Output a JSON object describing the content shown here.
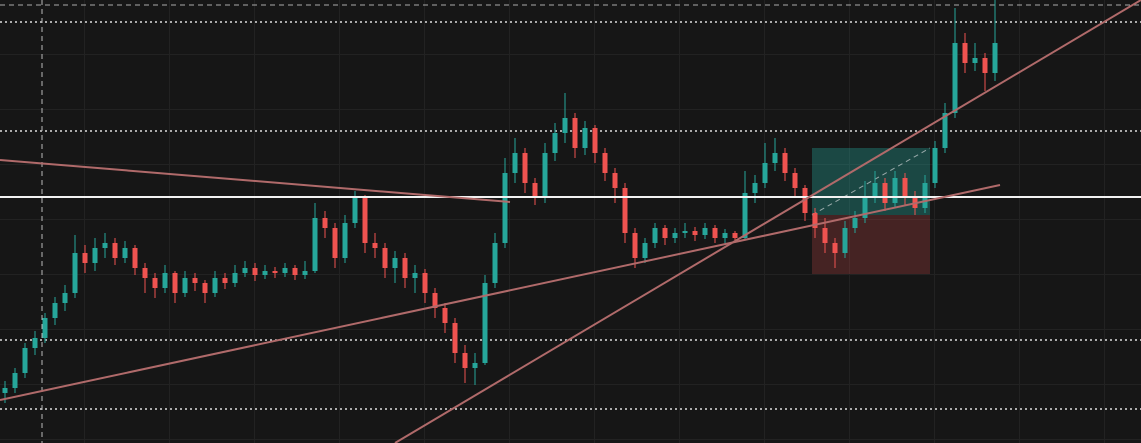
{
  "chart_data": {
    "type": "candlestick",
    "xlim": [
      -0.5,
      113.6
    ],
    "ylim": [
      0,
      443
    ],
    "up_color": "#26a69a",
    "down_color": "#ef5350",
    "ohlc": [
      [
        50,
        62,
        40,
        55
      ],
      [
        55,
        75,
        50,
        70
      ],
      [
        70,
        100,
        65,
        95
      ],
      [
        95,
        112,
        88,
        105
      ],
      [
        105,
        130,
        100,
        125
      ],
      [
        125,
        146,
        118,
        140
      ],
      [
        140,
        158,
        132,
        150
      ],
      [
        150,
        208,
        145,
        190
      ],
      [
        190,
        198,
        170,
        180
      ],
      [
        180,
        205,
        172,
        195
      ],
      [
        195,
        210,
        185,
        200
      ],
      [
        200,
        205,
        178,
        185
      ],
      [
        185,
        202,
        180,
        195
      ],
      [
        195,
        198,
        168,
        175
      ],
      [
        175,
        180,
        150,
        165
      ],
      [
        165,
        170,
        145,
        155
      ],
      [
        155,
        178,
        150,
        170
      ],
      [
        170,
        172,
        140,
        150
      ],
      [
        150,
        172,
        146,
        165
      ],
      [
        165,
        170,
        152,
        160
      ],
      [
        160,
        163,
        140,
        150
      ],
      [
        150,
        172,
        146,
        165
      ],
      [
        165,
        170,
        154,
        160
      ],
      [
        160,
        178,
        156,
        170
      ],
      [
        170,
        182,
        166,
        175
      ],
      [
        175,
        180,
        162,
        168
      ],
      [
        168,
        178,
        164,
        172
      ],
      [
        172,
        176,
        165,
        170
      ],
      [
        170,
        180,
        166,
        175
      ],
      [
        175,
        178,
        163,
        168
      ],
      [
        168,
        182,
        164,
        172
      ],
      [
        172,
        240,
        170,
        225
      ],
      [
        225,
        232,
        205,
        215
      ],
      [
        215,
        220,
        175,
        185
      ],
      [
        185,
        228,
        180,
        220
      ],
      [
        220,
        252,
        215,
        245
      ],
      [
        245,
        248,
        190,
        200
      ],
      [
        200,
        210,
        185,
        195
      ],
      [
        195,
        200,
        165,
        175
      ],
      [
        175,
        192,
        160,
        185
      ],
      [
        185,
        190,
        155,
        165
      ],
      [
        165,
        178,
        150,
        170
      ],
      [
        170,
        174,
        140,
        150
      ],
      [
        150,
        155,
        125,
        135
      ],
      [
        135,
        140,
        110,
        120
      ],
      [
        120,
        125,
        80,
        90
      ],
      [
        90,
        98,
        60,
        75
      ],
      [
        75,
        90,
        58,
        80
      ],
      [
        80,
        168,
        78,
        160
      ],
      [
        160,
        210,
        155,
        200
      ],
      [
        200,
        285,
        195,
        270
      ],
      [
        270,
        305,
        260,
        290
      ],
      [
        290,
        295,
        250,
        260
      ],
      [
        260,
        265,
        238,
        245
      ],
      [
        245,
        300,
        240,
        290
      ],
      [
        290,
        320,
        282,
        310
      ],
      [
        310,
        350,
        300,
        325
      ],
      [
        325,
        330,
        285,
        295
      ],
      [
        295,
        322,
        288,
        315
      ],
      [
        315,
        318,
        280,
        290
      ],
      [
        290,
        295,
        262,
        270
      ],
      [
        270,
        275,
        240,
        255
      ],
      [
        255,
        260,
        200,
        210
      ],
      [
        210,
        215,
        175,
        185
      ],
      [
        185,
        205,
        180,
        200
      ],
      [
        200,
        220,
        195,
        215
      ],
      [
        215,
        218,
        198,
        205
      ],
      [
        205,
        215,
        200,
        210
      ],
      [
        210,
        220,
        205,
        212
      ],
      [
        212,
        216,
        202,
        208
      ],
      [
        208,
        220,
        204,
        215
      ],
      [
        215,
        218,
        200,
        205
      ],
      [
        205,
        214,
        200,
        210
      ],
      [
        210,
        212,
        200,
        205
      ],
      [
        205,
        272,
        203,
        250
      ],
      [
        250,
        268,
        240,
        260
      ],
      [
        260,
        300,
        255,
        280
      ],
      [
        280,
        305,
        272,
        290
      ],
      [
        290,
        295,
        262,
        270
      ],
      [
        270,
        275,
        245,
        255
      ],
      [
        255,
        258,
        222,
        230
      ],
      [
        230,
        235,
        205,
        215
      ],
      [
        215,
        225,
        190,
        200
      ],
      [
        200,
        205,
        175,
        190
      ],
      [
        190,
        222,
        185,
        215
      ],
      [
        215,
        232,
        210,
        225
      ],
      [
        225,
        262,
        220,
        245
      ],
      [
        245,
        272,
        240,
        260
      ],
      [
        260,
        265,
        232,
        240
      ],
      [
        240,
        272,
        235,
        265
      ],
      [
        265,
        270,
        238,
        245
      ],
      [
        245,
        252,
        228,
        235
      ],
      [
        235,
        268,
        230,
        260
      ],
      [
        260,
        302,
        255,
        295
      ],
      [
        295,
        340,
        290,
        330
      ],
      [
        330,
        435,
        325,
        400
      ],
      [
        400,
        410,
        370,
        380
      ],
      [
        380,
        400,
        372,
        385
      ],
      [
        385,
        390,
        352,
        370
      ],
      [
        370,
        443,
        362,
        400
      ]
    ],
    "dotted_levels": [
      421,
      312,
      103,
      34
    ],
    "solid_levels": [
      246
    ],
    "dashed_levels": [
      438
    ],
    "vertical_markers": [
      3.7
    ],
    "trendline_color": "#b06a6a",
    "trendlines": [
      {
        "x": [
          -0.5,
          50.5
        ],
        "y": [
          283,
          241
        ]
      },
      {
        "x": [
          -0.5,
          99.5
        ],
        "y": [
          43,
          258
        ]
      },
      {
        "x": [
          39,
          113.6
        ],
        "y": [
          0,
          443
        ]
      }
    ],
    "position": {
      "x": [
        80.7,
        92.5
      ],
      "entry": 228,
      "target": 295,
      "stop": 169
    }
  }
}
